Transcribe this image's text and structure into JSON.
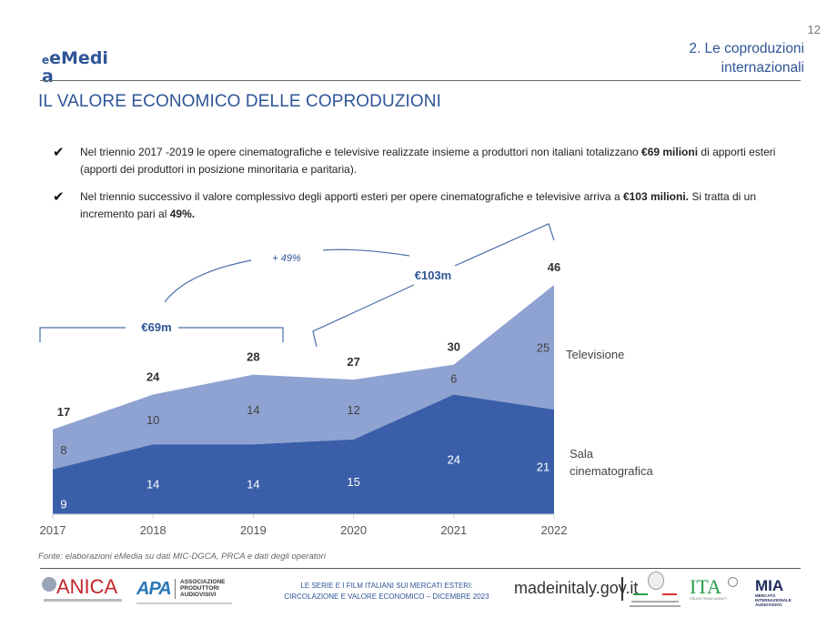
{
  "header": {
    "logo_main": "eMedi",
    "logo_tail": "a",
    "page_number": "12",
    "section_line1": "2. Le coproduzioni",
    "section_line2": "internazionali",
    "title": "IL VALORE ECONOMICO DELLE COPRODUZIONI"
  },
  "bullets": [
    {
      "icon": "checkmark-icon",
      "pre": "Nel triennio 2017 -2019 le opere cinematografiche e televisive realizzate insieme a produttori non italiani totalizzano ",
      "bold": "€69 milioni",
      "post": " di apporti esteri (apporti dei produttori in posizione minoritaria e paritaria).",
      "bold2": "",
      "post2": ""
    },
    {
      "icon": "checkmark-icon",
      "pre": "Nel triennio successivo il valore complessivo degli apporti esteri per opere cinematografiche e televisive arriva a ",
      "bold": "€103 milioni.",
      "post": " Si tratta di un incremento pari al ",
      "bold2": "49%.",
      "post2": ""
    }
  ],
  "chart_data": {
    "type": "area",
    "stacked": true,
    "categories": [
      "2017",
      "2018",
      "2019",
      "2020",
      "2021",
      "2022"
    ],
    "series": [
      {
        "name": "Sala cinematografica",
        "values": [
          9,
          14,
          14,
          15,
          24,
          21
        ],
        "color": "#3a5ea8",
        "label_color": "#ffffff"
      },
      {
        "name": "Televisione",
        "values": [
          8,
          10,
          14,
          12,
          6,
          25
        ],
        "color": "#8fa3d2",
        "label_color": "#404040"
      }
    ],
    "totals": [
      17,
      24,
      28,
      27,
      30,
      46
    ],
    "ylim": [
      0,
      46
    ],
    "grid": false,
    "legend": "right (inline labels)",
    "annotations": {
      "bracket_1_label": "€69m",
      "bracket_1_span": [
        "2017",
        "2019"
      ],
      "bracket_2_label": "€103m",
      "bracket_2_span": [
        "2020",
        "2022"
      ],
      "growth_label": "+ 49%"
    }
  },
  "footer": {
    "source": "Fonte: elaborazioni eMedia su dati MIC-DGCA, PRCA e dati degli operatori",
    "center_line1": "LE SERIE E I FILM ITALIANI SUI MERCATI ESTERI:",
    "center_line2": "CIRCOLAZIONE E VALORE ECONOMICO – DICEMBRE 2023",
    "site": "madeinitaly.gov.it",
    "logos": {
      "anica": "ANICA",
      "apa_mark": "APA",
      "apa_line1": "ASSOCIAZIONE",
      "apa_line2": "PRODUTTORI",
      "apa_line3": "AUDIOVISIVI",
      "ita": "ITA",
      "ita_sub": "ITALIAN TRADE AGENCY",
      "mia": "MIA",
      "mia_line1": "MERCATO",
      "mia_line2": "INTERNAZIONALE",
      "mia_line3": "AUDIOVISIVO"
    },
    "accent": "#2f5597"
  }
}
